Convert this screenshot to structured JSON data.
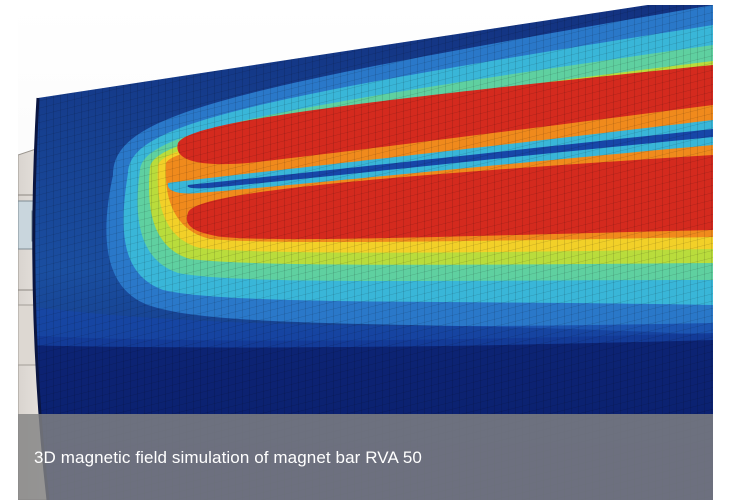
{
  "figure": {
    "caption": "3D magnetic field simulation of magnet bar RVA 50",
    "colormap": [
      "#0b1f6e",
      "#1746a8",
      "#2a78c9",
      "#39b6d8",
      "#5fd0a0",
      "#b9dc3c",
      "#f2d028",
      "#f08a1c",
      "#d42a1e"
    ]
  }
}
